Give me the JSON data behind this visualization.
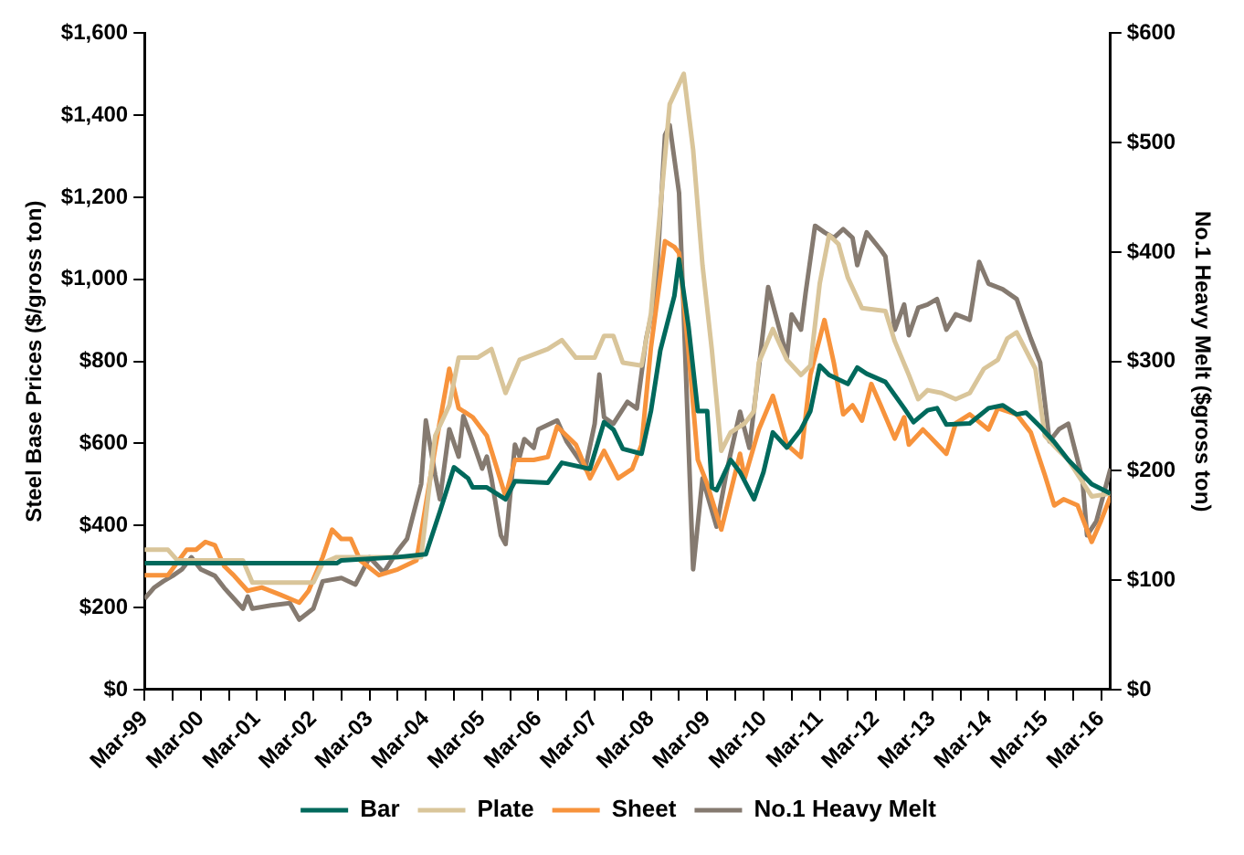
{
  "chart_data": {
    "type": "line",
    "ylabel": "Steel Base Prices ($/gross ton)",
    "y2label": "No.1 Heavy Melt ($gross ton)",
    "xlim": [
      "1999-03",
      "2016-05"
    ],
    "xticks": [
      {
        "value": "1999-03",
        "label": "Mar-99"
      },
      {
        "value": "1999-09",
        "label": null
      },
      {
        "value": "2000-03",
        "label": "Mar-00"
      },
      {
        "value": "2000-09",
        "label": null
      },
      {
        "value": "2001-03",
        "label": "Mar-01"
      },
      {
        "value": "2001-09",
        "label": null
      },
      {
        "value": "2002-03",
        "label": "Mar-02"
      },
      {
        "value": "2002-09",
        "label": null
      },
      {
        "value": "2003-03",
        "label": "Mar-03"
      },
      {
        "value": "2003-09",
        "label": null
      },
      {
        "value": "2004-03",
        "label": "Mar-04"
      },
      {
        "value": "2004-09",
        "label": null
      },
      {
        "value": "2005-03",
        "label": "Mar-05"
      },
      {
        "value": "2005-09",
        "label": null
      },
      {
        "value": "2006-03",
        "label": "Mar-06"
      },
      {
        "value": "2006-09",
        "label": null
      },
      {
        "value": "2007-03",
        "label": "Mar-07"
      },
      {
        "value": "2007-09",
        "label": null
      },
      {
        "value": "2008-03",
        "label": "Mar-08"
      },
      {
        "value": "2008-09",
        "label": null
      },
      {
        "value": "2009-03",
        "label": "Mar-09"
      },
      {
        "value": "2009-09",
        "label": null
      },
      {
        "value": "2010-03",
        "label": "Mar-10"
      },
      {
        "value": "2010-09",
        "label": null
      },
      {
        "value": "2011-03",
        "label": "Mar-11"
      },
      {
        "value": "2011-09",
        "label": null
      },
      {
        "value": "2012-03",
        "label": "Mar-12"
      },
      {
        "value": "2012-09",
        "label": null
      },
      {
        "value": "2013-03",
        "label": "Mar-13"
      },
      {
        "value": "2013-09",
        "label": null
      },
      {
        "value": "2014-03",
        "label": "Mar-14"
      },
      {
        "value": "2014-09",
        "label": null
      },
      {
        "value": "2015-03",
        "label": "Mar-15"
      },
      {
        "value": "2015-09",
        "label": null
      },
      {
        "value": "2016-03",
        "label": "Mar-16"
      }
    ],
    "ylim": [
      0,
      1600
    ],
    "yticks": [
      {
        "value": 0,
        "label": "$0"
      },
      {
        "value": 200,
        "label": "$200"
      },
      {
        "value": 400,
        "label": "$400"
      },
      {
        "value": 600,
        "label": "$600"
      },
      {
        "value": 800,
        "label": "$800"
      },
      {
        "value": 1000,
        "label": "$1,000"
      },
      {
        "value": 1200,
        "label": "$1,200"
      },
      {
        "value": 1400,
        "label": "$1,400"
      },
      {
        "value": 1600,
        "label": "$1,600"
      }
    ],
    "y2lim": [
      0,
      600
    ],
    "y2ticks": [
      {
        "value": 0,
        "label": "$0"
      },
      {
        "value": 100,
        "label": "$100"
      },
      {
        "value": 200,
        "label": "$200"
      },
      {
        "value": 300,
        "label": "$300"
      },
      {
        "value": 400,
        "label": "$400"
      },
      {
        "value": 500,
        "label": "$500"
      },
      {
        "value": 600,
        "label": "$600"
      }
    ],
    "grid": false,
    "legend": "bottom",
    "marker": "none",
    "line_style": "solid",
    "series": [
      {
        "name": "Bar",
        "color": "#00695c",
        "x": [
          "1999-03",
          "2002-08",
          "2002-09",
          "2003-09",
          "2004-03",
          "2004-06",
          "2004-09",
          "2004-12",
          "2005-01",
          "2005-04",
          "2005-08",
          "2005-10",
          "2006-05",
          "2006-08",
          "2007-02",
          "2007-05",
          "2007-07",
          "2007-09",
          "2008-01",
          "2008-03",
          "2008-05",
          "2008-08",
          "2008-09",
          "2008-11",
          "2009-01",
          "2009-03",
          "2009-04",
          "2009-05",
          "2009-08",
          "2009-10",
          "2010-01",
          "2010-03",
          "2010-05",
          "2010-08",
          "2010-11",
          "2011-01",
          "2011-03",
          "2011-05",
          "2011-09",
          "2011-11",
          "2012-01",
          "2012-05",
          "2012-09",
          "2012-11",
          "2013-02",
          "2013-04",
          "2013-06",
          "2013-11",
          "2014-03",
          "2014-06",
          "2014-09",
          "2014-11",
          "2015-02",
          "2015-05",
          "2015-08",
          "2016-01",
          "2016-05"
        ],
        "values": [
          308,
          308,
          315,
          323,
          330,
          434,
          542,
          515,
          493,
          493,
          464,
          508,
          504,
          553,
          538,
          652,
          634,
          587,
          575,
          679,
          827,
          960,
          1049,
          886,
          679,
          679,
          493,
          486,
          560,
          530,
          464,
          530,
          627,
          590,
          634,
          679,
          790,
          767,
          745,
          785,
          770,
          750,
          686,
          652,
          681,
          686,
          646,
          649,
          686,
          693,
          671,
          675,
          641,
          604,
          560,
          501,
          478
        ]
      },
      {
        "name": "Plate",
        "color": "#d9c59a",
        "x": [
          "1999-03",
          "1999-08",
          "1999-10",
          "2000-12",
          "2001-02",
          "2002-03",
          "2002-05",
          "2002-08",
          "2004-02",
          "2004-05",
          "2004-08",
          "2004-10",
          "2005-02",
          "2005-05",
          "2005-08",
          "2005-11",
          "2006-05",
          "2006-08",
          "2006-11",
          "2007-03",
          "2007-05",
          "2007-07",
          "2007-09",
          "2008-01",
          "2008-03",
          "2008-07",
          "2008-10",
          "2008-12",
          "2009-02",
          "2009-04",
          "2009-06",
          "2009-08",
          "2009-11",
          "2010-01",
          "2010-02",
          "2010-05",
          "2010-08",
          "2010-11",
          "2011-01",
          "2011-03",
          "2011-05",
          "2011-07",
          "2011-09",
          "2011-12",
          "2012-05",
          "2012-07",
          "2012-10",
          "2012-12",
          "2013-02",
          "2013-05",
          "2013-08",
          "2013-11",
          "2014-02",
          "2014-05",
          "2014-07",
          "2014-09",
          "2015-01",
          "2015-03",
          "2015-06",
          "2015-08",
          "2016-01",
          "2016-05"
        ],
        "values": [
          341,
          341,
          315,
          315,
          261,
          261,
          308,
          323,
          323,
          619,
          693,
          809,
          809,
          830,
          723,
          804,
          830,
          852,
          809,
          809,
          862,
          862,
          797,
          790,
          916,
          1427,
          1501,
          1316,
          1034,
          827,
          582,
          627,
          649,
          679,
          797,
          879,
          804,
          767,
          790,
          990,
          1108,
          1086,
          1004,
          930,
          923,
          849,
          767,
          708,
          730,
          723,
          708,
          723,
          782,
          804,
          856,
          871,
          782,
          619,
          582,
          560,
          471,
          478
        ]
      },
      {
        "name": "Sheet",
        "color": "#f7933c",
        "x": [
          "1999-03",
          "1999-08",
          "1999-12",
          "2000-02",
          "2000-04",
          "2000-06",
          "2000-08",
          "2000-10",
          "2001-01",
          "2001-04",
          "2001-08",
          "2001-12",
          "2002-02",
          "2002-05",
          "2002-07",
          "2002-09",
          "2002-11",
          "2003-01",
          "2003-05",
          "2003-09",
          "2004-01",
          "2004-02",
          "2004-05",
          "2004-08",
          "2004-10",
          "2005-01",
          "2005-04",
          "2005-08",
          "2005-10",
          "2006-02",
          "2006-05",
          "2006-07",
          "2006-11",
          "2007-02",
          "2007-05",
          "2007-08",
          "2007-11",
          "2008-01",
          "2008-03",
          "2008-06",
          "2008-08",
          "2008-09",
          "2008-11",
          "2009-01",
          "2009-03",
          "2009-06",
          "2009-10",
          "2009-11",
          "2010-02",
          "2010-05",
          "2010-08",
          "2010-11",
          "2011-01",
          "2011-04",
          "2011-06",
          "2011-08",
          "2011-10",
          "2011-12",
          "2012-02",
          "2012-04",
          "2012-07",
          "2012-09",
          "2012-10",
          "2013-01",
          "2013-06",
          "2013-08",
          "2013-11",
          "2014-03",
          "2014-05",
          "2014-09",
          "2014-12",
          "2015-03",
          "2015-05",
          "2015-07",
          "2015-10",
          "2016-01",
          "2016-03",
          "2016-05"
        ],
        "values": [
          279,
          279,
          341,
          341,
          360,
          352,
          301,
          279,
          241,
          249,
          231,
          212,
          241,
          323,
          390,
          367,
          367,
          315,
          279,
          293,
          315,
          382,
          590,
          782,
          686,
          664,
          619,
          471,
          560,
          560,
          567,
          641,
          597,
          515,
          582,
          515,
          538,
          597,
          834,
          1093,
          1079,
          1064,
          827,
          560,
          501,
          390,
          575,
          516,
          634,
          716,
          597,
          567,
          767,
          901,
          797,
          671,
          693,
          656,
          745,
          693,
          612,
          664,
          597,
          634,
          575,
          649,
          671,
          634,
          686,
          671,
          627,
          523,
          449,
          464,
          449,
          360,
          412,
          471
        ]
      },
      {
        "name": "No.1 Heavy Melt",
        "color": "#857a70",
        "axis": "y2",
        "x": [
          "1999-03",
          "1999-05",
          "1999-07",
          "1999-09",
          "1999-11",
          "2000-01",
          "2000-03",
          "2000-06",
          "2000-08",
          "2000-12",
          "2001-01",
          "2001-02",
          "2001-06",
          "2001-10",
          "2001-12",
          "2002-03",
          "2002-05",
          "2002-09",
          "2002-12",
          "2003-03",
          "2003-06",
          "2003-09",
          "2003-11",
          "2004-02",
          "2004-03",
          "2004-05",
          "2004-06",
          "2004-08",
          "2004-10",
          "2004-11",
          "2005-01",
          "2005-03",
          "2005-04",
          "2005-05",
          "2005-07",
          "2005-08",
          "2005-10",
          "2005-11",
          "2005-12",
          "2006-02",
          "2006-03",
          "2006-07",
          "2006-09",
          "2007-01",
          "2007-03",
          "2007-04",
          "2007-05",
          "2007-07",
          "2007-10",
          "2007-12",
          "2008-02",
          "2008-04",
          "2008-06",
          "2008-07",
          "2008-09",
          "2008-10",
          "2008-12",
          "2009-02",
          "2009-05",
          "2009-07",
          "2009-08",
          "2009-10",
          "2009-12",
          "2010-02",
          "2010-04",
          "2010-08",
          "2010-09",
          "2010-11",
          "2010-12",
          "2011-02",
          "2011-04",
          "2011-06",
          "2011-08",
          "2011-10",
          "2011-11",
          "2012-01",
          "2012-04",
          "2012-05",
          "2012-07",
          "2012-09",
          "2012-10",
          "2012-12",
          "2013-02",
          "2013-04",
          "2013-06",
          "2013-08",
          "2013-11",
          "2014-01",
          "2014-03",
          "2014-06",
          "2014-09",
          "2014-12",
          "2015-02",
          "2015-04",
          "2015-06",
          "2015-08",
          "2015-11",
          "2015-12",
          "2016-02",
          "2016-05"
        ],
        "values": [
          83,
          93,
          99,
          104,
          110,
          121,
          110,
          104,
          93,
          74,
          85,
          74,
          77,
          79,
          64,
          74,
          99,
          102,
          96,
          121,
          107,
          127,
          138,
          188,
          246,
          196,
          174,
          238,
          213,
          250,
          227,
          202,
          213,
          193,
          141,
          133,
          224,
          213,
          229,
          221,
          238,
          246,
          227,
          202,
          243,
          288,
          249,
          243,
          263,
          257,
          321,
          360,
          507,
          516,
          454,
          343,
          110,
          193,
          149,
          196,
          216,
          254,
          221,
          293,
          368,
          304,
          343,
          329,
          363,
          424,
          418,
          413,
          421,
          413,
          388,
          418,
          402,
          396,
          329,
          352,
          324,
          349,
          352,
          357,
          329,
          343,
          338,
          391,
          371,
          366,
          357,
          321,
          299,
          227,
          238,
          243,
          193,
          141,
          154,
          202
        ]
      }
    ]
  }
}
